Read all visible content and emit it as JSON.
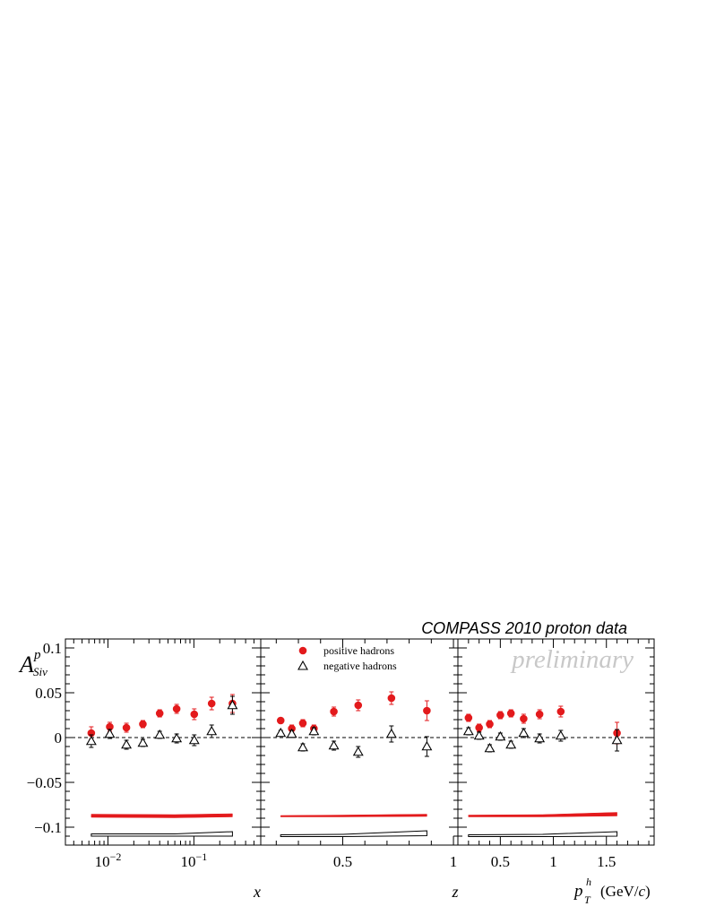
{
  "header": {
    "title": "COMPASS 2010 proton data",
    "watermark": "preliminary"
  },
  "colors": {
    "positive": "#e31a1c",
    "negative": "#000000",
    "axis": "#000000",
    "watermark": "#c8c8c8"
  },
  "chart_data": {
    "type": "scatter",
    "ylabel": {
      "main": "A",
      "sup": "p",
      "sub": "Siv"
    },
    "ylim": [
      -0.12,
      0.11
    ],
    "yticks": [
      {
        "v": 0.1,
        "label": "0.1"
      },
      {
        "v": 0.05,
        "label": "0.05"
      },
      {
        "v": 0,
        "label": "0"
      },
      {
        "v": -0.05,
        "label": "−0.05"
      },
      {
        "v": -0.1,
        "label": "−0.1"
      }
    ],
    "legend": {
      "position": "top-center of middle panel",
      "entries": [
        {
          "name": "positive hadrons",
          "marker": "filled-circle"
        },
        {
          "name": "negative hadrons",
          "marker": "open-triangle"
        }
      ]
    },
    "panels": [
      {
        "id": "x",
        "xlabel": "x",
        "xscale": "log",
        "xlim": [
          0.0032,
          0.6
        ],
        "xticks": [
          {
            "v": 0.01,
            "label": "10",
            "sup": "−2"
          },
          {
            "v": 0.1,
            "label": "10",
            "sup": "−1"
          }
        ],
        "series": [
          {
            "name": "positive hadrons",
            "x": [
              0.0064,
              0.0105,
              0.0164,
              0.0255,
              0.04,
              0.063,
              0.101,
              0.161,
              0.281
            ],
            "y": [
              0.005,
              0.012,
              0.011,
              0.015,
              0.027,
              0.032,
              0.026,
              0.038,
              0.038
            ],
            "err": [
              0.007,
              0.005,
              0.005,
              0.004,
              0.004,
              0.005,
              0.006,
              0.007,
              0.01
            ]
          },
          {
            "name": "negative hadrons",
            "x": [
              0.0064,
              0.0105,
              0.0164,
              0.0255,
              0.04,
              0.063,
              0.101,
              0.161,
              0.281
            ],
            "y": [
              -0.004,
              0.004,
              -0.008,
              -0.006,
              0.003,
              -0.001,
              -0.003,
              0.007,
              0.036
            ],
            "err": [
              0.007,
              0.005,
              0.005,
              0.004,
              0.004,
              0.005,
              0.006,
              0.007,
              0.01
            ]
          }
        ],
        "bands": {
          "positive": {
            "x": [
              0.0064,
              0.06,
              0.281
            ],
            "lo": [
              -0.089,
              -0.0895,
              -0.0885
            ],
            "hi": [
              -0.0855,
              -0.086,
              -0.085
            ]
          },
          "negative": {
            "x": [
              0.0064,
              0.06,
              0.281
            ],
            "lo": [
              -0.11,
              -0.11,
              -0.11
            ],
            "hi": [
              -0.1075,
              -0.1075,
              -0.105
            ]
          }
        }
      },
      {
        "id": "z",
        "xlabel": "z",
        "xscale": "linear",
        "xlim": [
          0.13,
          1.02
        ],
        "xticks": [
          {
            "v": 0.5,
            "label": "0.5"
          },
          {
            "v": 1,
            "label": "1"
          }
        ],
        "series": [
          {
            "name": "positive hadrons",
            "x": [
              0.22,
              0.27,
              0.32,
              0.37,
              0.46,
              0.57,
              0.72,
              0.88
            ],
            "y": [
              0.019,
              0.01,
              0.016,
              0.01,
              0.029,
              0.036,
              0.044,
              0.03
            ],
            "err": [
              0.003,
              0.004,
              0.004,
              0.004,
              0.005,
              0.006,
              0.007,
              0.011
            ]
          },
          {
            "name": "negative hadrons",
            "x": [
              0.22,
              0.27,
              0.32,
              0.37,
              0.46,
              0.57,
              0.72,
              0.88
            ],
            "y": [
              0.005,
              0.004,
              -0.011,
              0.007,
              -0.009,
              -0.016,
              0.004,
              -0.01
            ],
            "err": [
              0.003,
              0.004,
              0.004,
              0.004,
              0.005,
              0.006,
              0.009,
              0.011
            ]
          }
        ],
        "bands": {
          "positive": {
            "x": [
              0.22,
              0.5,
              0.88
            ],
            "lo": [
              -0.0885,
              -0.0885,
              -0.088
            ],
            "hi": [
              -0.087,
              -0.0865,
              -0.0855
            ]
          },
          "negative": {
            "x": [
              0.22,
              0.5,
              0.88
            ],
            "lo": [
              -0.1105,
              -0.1105,
              -0.1095
            ],
            "hi": [
              -0.1085,
              -0.108,
              -0.104
            ]
          }
        }
      },
      {
        "id": "pt",
        "xlabel": "p_T^h (GeV/c)",
        "xscale": "linear",
        "xlim": [
          0.1,
          1.95
        ],
        "xticks": [
          {
            "v": 0.5,
            "label": "0.5"
          },
          {
            "v": 1,
            "label": "1"
          },
          {
            "v": 1.5,
            "label": "1.5"
          }
        ],
        "series": [
          {
            "name": "positive hadrons",
            "x": [
              0.2,
              0.3,
              0.4,
              0.5,
              0.6,
              0.72,
              0.87,
              1.07,
              1.6
            ],
            "y": [
              0.022,
              0.011,
              0.015,
              0.025,
              0.027,
              0.021,
              0.026,
              0.029,
              0.005
            ],
            "err": [
              0.004,
              0.004,
              0.004,
              0.004,
              0.004,
              0.005,
              0.005,
              0.006,
              0.012
            ]
          },
          {
            "name": "negative hadrons",
            "x": [
              0.2,
              0.3,
              0.4,
              0.5,
              0.6,
              0.72,
              0.87,
              1.07,
              1.6
            ],
            "y": [
              0.007,
              0.002,
              -0.012,
              0.001,
              -0.008,
              0.005,
              -0.001,
              0.002,
              -0.003
            ],
            "err": [
              0.004,
              0.004,
              0.004,
              0.004,
              0.004,
              0.005,
              0.005,
              0.006,
              0.012
            ]
          }
        ],
        "bands": {
          "positive": {
            "x": [
              0.2,
              0.9,
              1.6
            ],
            "lo": [
              -0.0885,
              -0.0885,
              -0.0875
            ],
            "hi": [
              -0.0865,
              -0.086,
              -0.0835
            ]
          },
          "negative": {
            "x": [
              0.2,
              0.9,
              1.6
            ],
            "lo": [
              -0.1105,
              -0.1105,
              -0.11
            ],
            "hi": [
              -0.1085,
              -0.108,
              -0.105
            ]
          }
        }
      }
    ]
  }
}
